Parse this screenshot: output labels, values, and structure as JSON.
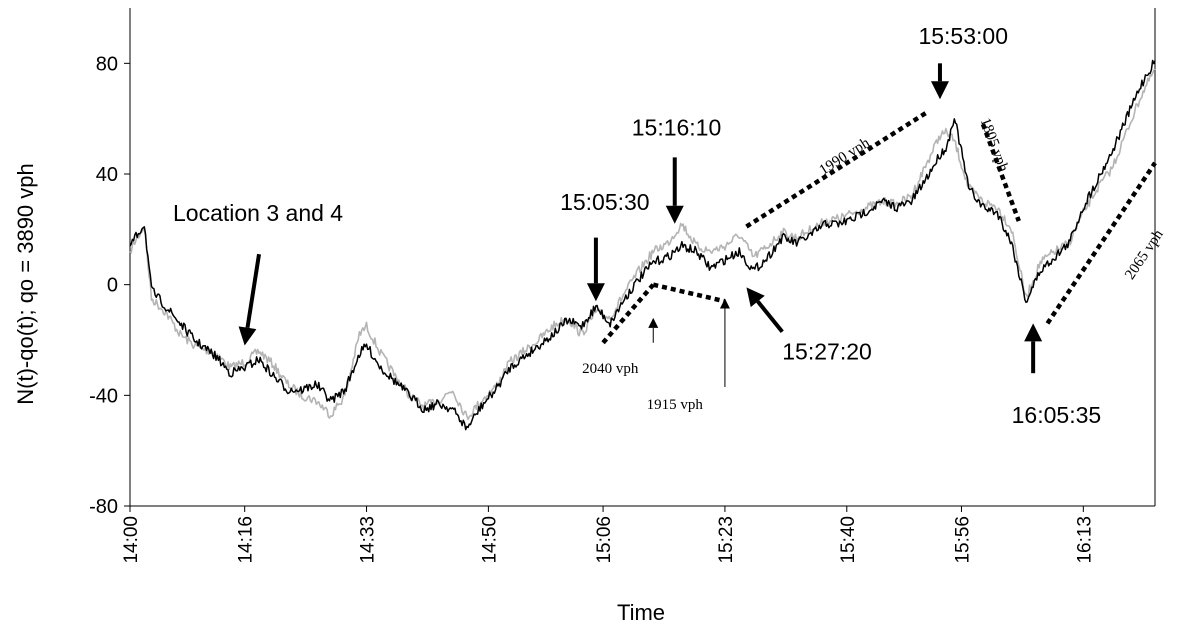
{
  "chart_data": {
    "type": "line",
    "xlabel": "Time",
    "ylabel": "N(t)-qo(t); qo = 3890 vph",
    "ylim": [
      -80,
      100
    ],
    "yticks": [
      "-80",
      "-40",
      "0",
      "40",
      "80"
    ],
    "xlim": [
      "14:00",
      "16:23"
    ],
    "xticks": [
      "14:00",
      "14:16",
      "14:33",
      "14:50",
      "15:06",
      "15:23",
      "15:40",
      "15:56",
      "16:13"
    ],
    "series_colors": [
      "#b4b4b4",
      "#000000"
    ],
    "series": [
      {
        "color": "#b4b4b4",
        "points": [
          [
            "14:00",
            12
          ],
          [
            "14:01",
            17
          ],
          [
            "14:02",
            21
          ],
          [
            "14:03",
            -5
          ],
          [
            "14:05",
            -10
          ],
          [
            "14:07",
            -18
          ],
          [
            "14:09",
            -22
          ],
          [
            "14:12",
            -25
          ],
          [
            "14:14",
            -30
          ],
          [
            "14:16",
            -28
          ],
          [
            "14:18",
            -24
          ],
          [
            "14:20",
            -29
          ],
          [
            "14:22",
            -36
          ],
          [
            "14:24",
            -40
          ],
          [
            "14:26",
            -42
          ],
          [
            "14:28",
            -47
          ],
          [
            "14:30",
            -40
          ],
          [
            "14:32",
            -18
          ],
          [
            "14:33",
            -15
          ],
          [
            "14:35",
            -25
          ],
          [
            "14:37",
            -33
          ],
          [
            "14:39",
            -40
          ],
          [
            "14:41",
            -44
          ],
          [
            "14:43",
            -42
          ],
          [
            "14:45",
            -38
          ],
          [
            "14:47",
            -48
          ],
          [
            "14:49",
            -42
          ],
          [
            "14:51",
            -37
          ],
          [
            "14:53",
            -28
          ],
          [
            "14:55",
            -24
          ],
          [
            "14:57",
            -20
          ],
          [
            "14:59",
            -15
          ],
          [
            "15:01",
            -12
          ],
          [
            "15:03",
            -18
          ],
          [
            "15:05",
            -10
          ],
          [
            "15:07",
            -12
          ],
          [
            "15:09",
            -3
          ],
          [
            "15:11",
            5
          ],
          [
            "15:13",
            12
          ],
          [
            "15:15",
            15
          ],
          [
            "15:17",
            22
          ],
          [
            "15:19",
            14
          ],
          [
            "15:21",
            12
          ],
          [
            "15:23",
            14
          ],
          [
            "15:25",
            18
          ],
          [
            "15:27",
            10
          ],
          [
            "15:29",
            14
          ],
          [
            "15:31",
            19
          ],
          [
            "15:33",
            17
          ],
          [
            "15:35",
            20
          ],
          [
            "15:37",
            23
          ],
          [
            "15:39",
            24
          ],
          [
            "15:41",
            26
          ],
          [
            "15:43",
            28
          ],
          [
            "15:45",
            30
          ],
          [
            "15:47",
            29
          ],
          [
            "15:49",
            32
          ],
          [
            "15:51",
            43
          ],
          [
            "15:53",
            54
          ],
          [
            "15:54",
            55
          ],
          [
            "15:55",
            52
          ],
          [
            "15:57",
            35
          ],
          [
            "15:59",
            30
          ],
          [
            "16:01",
            28
          ],
          [
            "16:03",
            20
          ],
          [
            "16:05",
            -5
          ],
          [
            "16:07",
            8
          ],
          [
            "16:09",
            12
          ],
          [
            "16:11",
            15
          ],
          [
            "16:13",
            26
          ],
          [
            "16:15",
            35
          ],
          [
            "16:17",
            42
          ],
          [
            "16:19",
            55
          ],
          [
            "16:21",
            68
          ],
          [
            "16:23",
            78
          ]
        ]
      },
      {
        "color": "#000000",
        "points": [
          [
            "14:00",
            14
          ],
          [
            "14:01",
            18
          ],
          [
            "14:02",
            22
          ],
          [
            "14:03",
            -2
          ],
          [
            "14:05",
            -8
          ],
          [
            "14:07",
            -14
          ],
          [
            "14:09",
            -20
          ],
          [
            "14:12",
            -26
          ],
          [
            "14:14",
            -32
          ],
          [
            "14:16",
            -30
          ],
          [
            "14:18",
            -27
          ],
          [
            "14:20",
            -33
          ],
          [
            "14:22",
            -38
          ],
          [
            "14:24",
            -38
          ],
          [
            "14:26",
            -36
          ],
          [
            "14:28",
            -42
          ],
          [
            "14:30",
            -38
          ],
          [
            "14:32",
            -25
          ],
          [
            "14:33",
            -22
          ],
          [
            "14:35",
            -30
          ],
          [
            "14:37",
            -35
          ],
          [
            "14:39",
            -40
          ],
          [
            "14:41",
            -45
          ],
          [
            "14:43",
            -43
          ],
          [
            "14:45",
            -45
          ],
          [
            "14:47",
            -52
          ],
          [
            "14:49",
            -44
          ],
          [
            "14:51",
            -38
          ],
          [
            "14:53",
            -30
          ],
          [
            "14:55",
            -26
          ],
          [
            "14:57",
            -22
          ],
          [
            "14:59",
            -18
          ],
          [
            "15:01",
            -13
          ],
          [
            "15:03",
            -15
          ],
          [
            "15:05",
            -8
          ],
          [
            "15:07",
            -14
          ],
          [
            "15:09",
            -5
          ],
          [
            "15:11",
            2
          ],
          [
            "15:13",
            8
          ],
          [
            "15:15",
            10
          ],
          [
            "15:17",
            14
          ],
          [
            "15:19",
            12
          ],
          [
            "15:21",
            6
          ],
          [
            "15:23",
            9
          ],
          [
            "15:25",
            12
          ],
          [
            "15:27",
            5
          ],
          [
            "15:29",
            10
          ],
          [
            "15:31",
            17
          ],
          [
            "15:33",
            15
          ],
          [
            "15:35",
            18
          ],
          [
            "15:37",
            22
          ],
          [
            "15:39",
            22
          ],
          [
            "15:41",
            24
          ],
          [
            "15:43",
            27
          ],
          [
            "15:45",
            30
          ],
          [
            "15:47",
            28
          ],
          [
            "15:49",
            30
          ],
          [
            "15:51",
            38
          ],
          [
            "15:53",
            47
          ],
          [
            "15:54",
            50
          ],
          [
            "15:55",
            61
          ],
          [
            "15:57",
            35
          ],
          [
            "15:59",
            28
          ],
          [
            "16:01",
            26
          ],
          [
            "16:03",
            15
          ],
          [
            "16:05",
            -6
          ],
          [
            "16:07",
            5
          ],
          [
            "16:09",
            10
          ],
          [
            "16:11",
            15
          ],
          [
            "16:13",
            28
          ],
          [
            "16:15",
            38
          ],
          [
            "16:17",
            48
          ],
          [
            "16:19",
            60
          ],
          [
            "16:21",
            72
          ],
          [
            "16:23",
            81
          ]
        ]
      }
    ],
    "rate_lines": [
      {
        "label": "2040 vph",
        "from": [
          "15:06",
          -21
        ],
        "to": [
          "15:13",
          0
        ],
        "label_at": [
          "15:07",
          -32
        ]
      },
      {
        "label": "1915 vph",
        "from": [
          "15:13",
          0
        ],
        "to": [
          "15:23",
          -6
        ],
        "label_at": [
          "15:16",
          -45
        ]
      },
      {
        "label": "1990 vph",
        "from": [
          "15:26",
          21
        ],
        "to": [
          "15:51",
          62
        ],
        "label_at": [
          "15:40",
          45
        ],
        "rotated": true
      },
      {
        "label": "1805 vph",
        "from": [
          "15:59",
          58
        ],
        "to": [
          "16:04",
          23
        ],
        "label_at": [
          "16:00",
          50
        ],
        "rotated": true
      },
      {
        "label": "2065 vph",
        "from": [
          "16:08",
          -14
        ],
        "to": [
          "16:23",
          44
        ],
        "label_at": [
          "16:22",
          10
        ],
        "rotated": true
      }
    ],
    "annotations": [
      {
        "text": "Location 3 and 4",
        "at": [
          "14:06",
          23
        ]
      },
      {
        "text": "15:05:30",
        "at": [
          "15:00",
          27
        ]
      },
      {
        "text": "15:16:10",
        "at": [
          "15:10",
          54
        ]
      },
      {
        "text": "15:27:20",
        "at": [
          "15:31",
          -27
        ]
      },
      {
        "text": "15:53:00",
        "at": [
          "15:50",
          87
        ]
      },
      {
        "text": "16:05:35",
        "at": [
          "16:03",
          -50
        ]
      }
    ],
    "arrows": [
      {
        "from": [
          "14:18",
          11
        ],
        "to": [
          "14:16",
          -22
        ]
      },
      {
        "from": [
          "15:05",
          17
        ],
        "to": [
          "15:05",
          -6
        ]
      },
      {
        "from": [
          "15:16",
          46
        ],
        "to": [
          "15:16",
          22
        ]
      },
      {
        "from": [
          "15:31",
          -17
        ],
        "to": [
          "15:26",
          -1
        ]
      },
      {
        "from": [
          "15:53",
          80
        ],
        "to": [
          "15:53",
          67
        ]
      },
      {
        "from": [
          "16:06",
          -32
        ],
        "to": [
          "16:06",
          -14
        ]
      },
      {
        "from": [
          "15:13",
          -21
        ],
        "to": [
          "15:13",
          -12
        ]
      },
      {
        "from": [
          "15:23",
          -37
        ],
        "to": [
          "15:23",
          -5
        ]
      }
    ]
  }
}
